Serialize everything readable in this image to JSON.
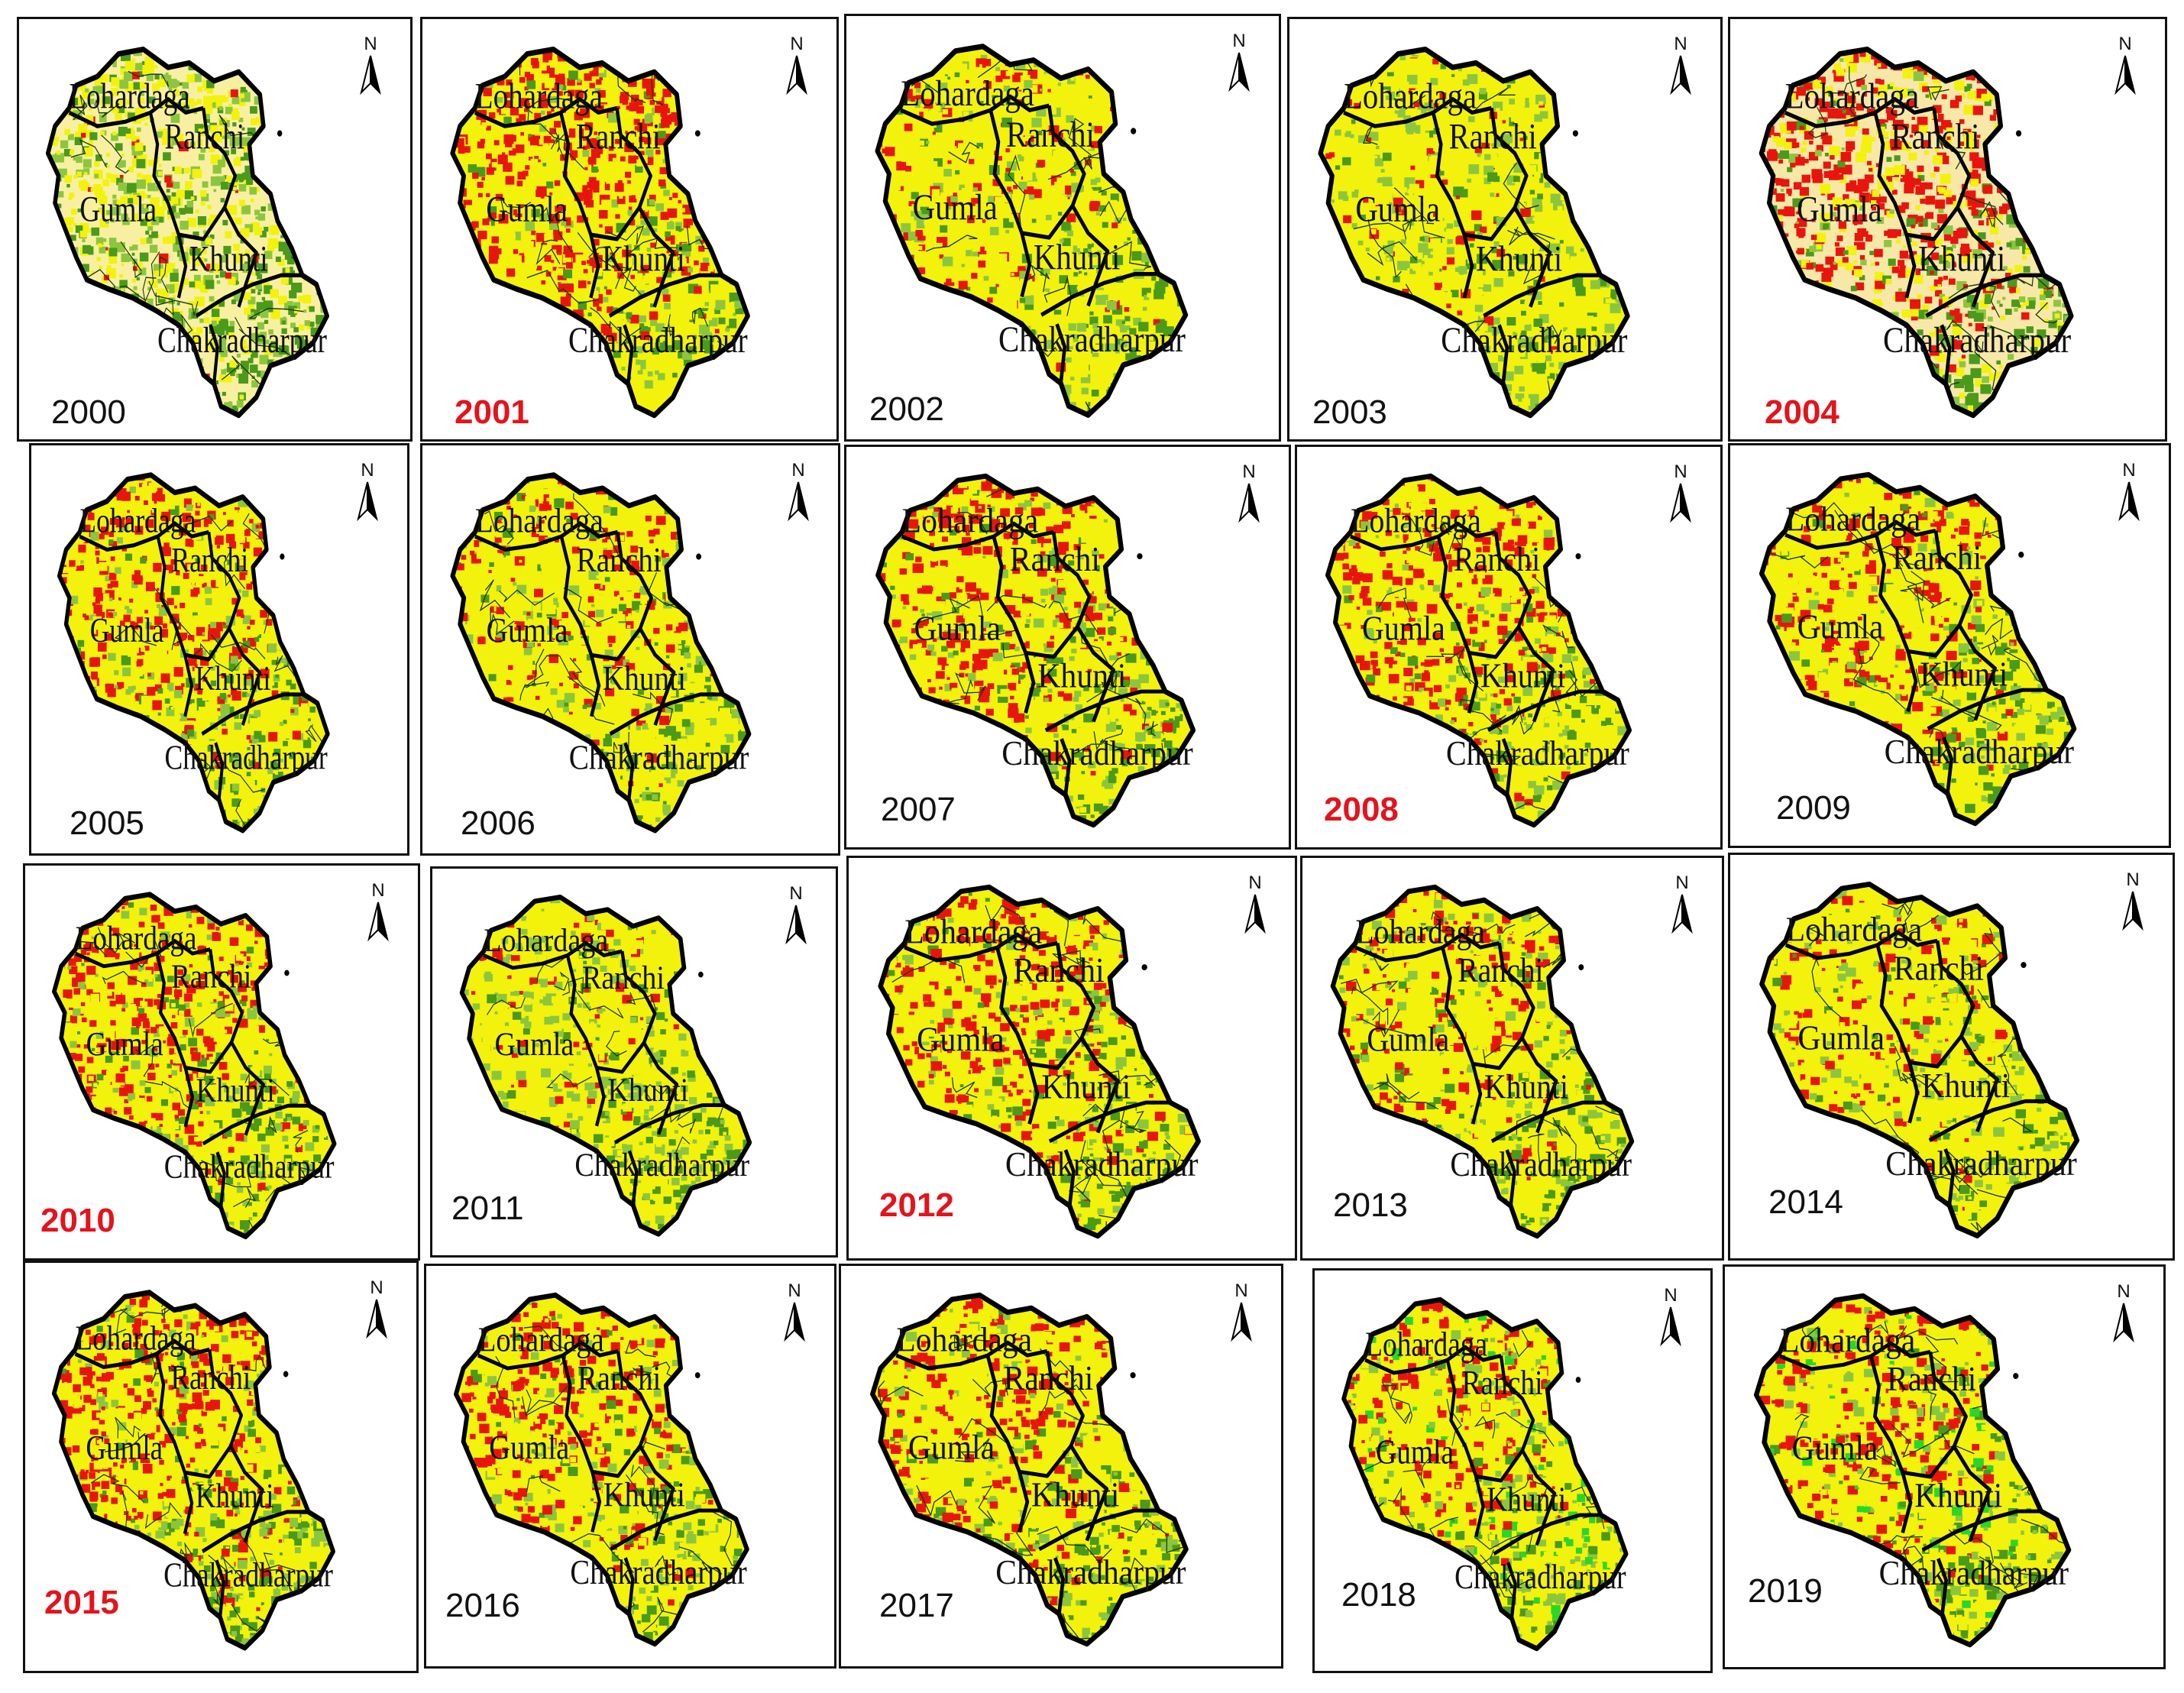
{
  "districts": [
    "Lohardaga",
    "Ranchi",
    "Gumla",
    "Khunti",
    "Chakradharpur"
  ],
  "north_label": "N",
  "colors": {
    "very_high": "#e8150e",
    "high": "#f2f20c",
    "moderate": "#8cc63f",
    "low": "#4a9a1c",
    "very_low": "#2bd62b",
    "light_yellow": "#f8f0a0",
    "highlight_year": "#e3141c"
  },
  "panels": [
    {
      "year": "2000",
      "highlight": false,
      "mix": [
        0.03,
        0.35,
        0.2,
        0.12,
        0.0
      ],
      "base": "#f8f0a0"
    },
    {
      "year": "2001",
      "highlight": true,
      "mix": [
        0.62,
        0.28,
        0.08,
        0.02,
        0.0
      ],
      "base": "#f2f20c"
    },
    {
      "year": "2002",
      "highlight": false,
      "mix": [
        0.22,
        0.6,
        0.12,
        0.06,
        0.0
      ],
      "base": "#f2f20c"
    },
    {
      "year": "2003",
      "highlight": false,
      "mix": [
        0.1,
        0.65,
        0.17,
        0.08,
        0.0
      ],
      "base": "#f2f20c"
    },
    {
      "year": "2004",
      "highlight": true,
      "mix": [
        0.6,
        0.3,
        0.05,
        0.05,
        0.0
      ],
      "base": "#f8e8a8"
    },
    {
      "year": "2005",
      "highlight": false,
      "mix": [
        0.45,
        0.42,
        0.08,
        0.05,
        0.0
      ],
      "base": "#f2f20c"
    },
    {
      "year": "2006",
      "highlight": false,
      "mix": [
        0.25,
        0.58,
        0.1,
        0.07,
        0.0
      ],
      "base": "#f2f20c"
    },
    {
      "year": "2007",
      "highlight": false,
      "mix": [
        0.4,
        0.45,
        0.09,
        0.06,
        0.0
      ],
      "base": "#f2f20c"
    },
    {
      "year": "2008",
      "highlight": true,
      "mix": [
        0.45,
        0.42,
        0.08,
        0.05,
        0.0
      ],
      "base": "#f2f20c"
    },
    {
      "year": "2009",
      "highlight": false,
      "mix": [
        0.38,
        0.48,
        0.08,
        0.06,
        0.0
      ],
      "base": "#f2f20c"
    },
    {
      "year": "2010",
      "highlight": true,
      "mix": [
        0.42,
        0.42,
        0.1,
        0.06,
        0.0
      ],
      "base": "#f2f20c"
    },
    {
      "year": "2011",
      "highlight": false,
      "mix": [
        0.12,
        0.55,
        0.25,
        0.08,
        0.0
      ],
      "base": "#f2f20c"
    },
    {
      "year": "2012",
      "highlight": true,
      "mix": [
        0.45,
        0.42,
        0.08,
        0.05,
        0.0
      ],
      "base": "#f2f20c"
    },
    {
      "year": "2013",
      "highlight": false,
      "mix": [
        0.28,
        0.55,
        0.11,
        0.06,
        0.0
      ],
      "base": "#f2f20c"
    },
    {
      "year": "2014",
      "highlight": false,
      "mix": [
        0.2,
        0.6,
        0.13,
        0.07,
        0.0
      ],
      "base": "#f2f20c"
    },
    {
      "year": "2015",
      "highlight": true,
      "mix": [
        0.48,
        0.38,
        0.08,
        0.06,
        0.0
      ],
      "base": "#f2f20c"
    },
    {
      "year": "2016",
      "highlight": false,
      "mix": [
        0.35,
        0.5,
        0.09,
        0.06,
        0.0
      ],
      "base": "#f2f20c"
    },
    {
      "year": "2017",
      "highlight": false,
      "mix": [
        0.35,
        0.5,
        0.09,
        0.06,
        0.0
      ],
      "base": "#f2f20c"
    },
    {
      "year": "2018",
      "highlight": false,
      "mix": [
        0.3,
        0.42,
        0.1,
        0.03,
        0.15
      ],
      "base": "#f2f20c"
    },
    {
      "year": "2019",
      "highlight": false,
      "mix": [
        0.32,
        0.42,
        0.1,
        0.03,
        0.13
      ],
      "base": "#f2f20c"
    }
  ]
}
